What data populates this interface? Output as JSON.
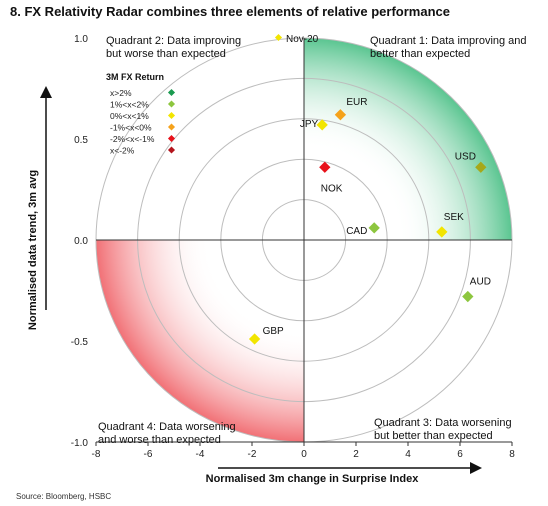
{
  "title": "8. FX Relativity Radar combines three elements of relative performance",
  "source": "Source: Bloomberg, HSBC",
  "chart_data": {
    "type": "scatter",
    "title": "8. FX Relativity Radar combines three elements of relative performance",
    "xlabel": "Normalised 3m change in Surprise Index",
    "ylabel": "Normalised data trend, 3m avg",
    "xlim": [
      -8,
      8
    ],
    "ylim": [
      -1.0,
      1.0
    ],
    "x_ticks": [
      "-8",
      "-6",
      "-4",
      "-2",
      "0",
      "2",
      "4",
      "6",
      "8"
    ],
    "y_ticks": [
      "1.0",
      "0.5",
      "0.0",
      "-0.5",
      "-1.0"
    ],
    "grid": false,
    "legend_title": "3M FX Return",
    "legend": [
      {
        "label": "x>2%",
        "color": "#1a9a50"
      },
      {
        "label": "1%<x<2%",
        "color": "#8dc63f"
      },
      {
        "label": "0%<x<1%",
        "color": "#f2e500"
      },
      {
        "label": "-1%<x<0%",
        "color": "#f5a21b"
      },
      {
        "label": "-2%<x<-1%",
        "color": "#e8111a"
      },
      {
        "label": "x<-2%",
        "color": "#b3141c"
      }
    ],
    "series_name": "Nov-20",
    "series_color": "#f2e500",
    "points": [
      {
        "label": "EUR",
        "x": 1.4,
        "y": 0.62,
        "color": "#f5a21b"
      },
      {
        "label": "JPY",
        "x": 0.7,
        "y": 0.57,
        "color": "#f2e500"
      },
      {
        "label": "NOK",
        "x": 0.8,
        "y": 0.36,
        "color": "#e8111a"
      },
      {
        "label": "USD",
        "x": 6.8,
        "y": 0.36,
        "color": "#a6a81a"
      },
      {
        "label": "SEK",
        "x": 5.3,
        "y": 0.04,
        "color": "#f2e500"
      },
      {
        "label": "CAD",
        "x": 2.7,
        "y": 0.06,
        "color": "#8dc63f"
      },
      {
        "label": "AUD",
        "x": 6.3,
        "y": -0.28,
        "color": "#8dc63f"
      },
      {
        "label": "GBP",
        "x": -1.9,
        "y": -0.49,
        "color": "#f2e500"
      }
    ],
    "quadrant_labels": [
      {
        "id": "q1",
        "text": [
          "Quadrant 1: Data improving and",
          "better than expected"
        ]
      },
      {
        "id": "q2",
        "text": [
          "Quadrant 2: Data improving",
          "but worse than expected"
        ]
      },
      {
        "id": "q3",
        "text": [
          "Quadrant 3: Data worsening",
          "but better than expected"
        ]
      },
      {
        "id": "q4",
        "text": [
          "Quadrant 4: Data worsening",
          "and worse than expected"
        ]
      }
    ],
    "colors": {
      "q1_fill": "#3dbb7d",
      "q3_fill": "#e8111a",
      "rings": "#bdbdbd"
    }
  }
}
